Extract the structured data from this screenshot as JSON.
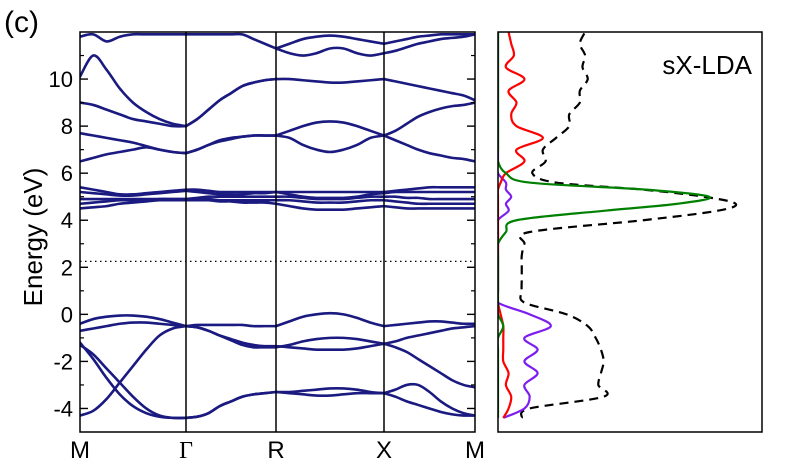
{
  "panel_label": "(c)",
  "chart_data": [
    {
      "type": "line",
      "subtype": "band_structure",
      "ylabel": "Energy (eV)",
      "xlabel": "",
      "ylim": [
        -5,
        12
      ],
      "yticks": [
        -4,
        -2,
        0,
        2,
        4,
        6,
        8,
        10
      ],
      "ytick_labels": [
        "-4",
        "-2",
        "0",
        "2",
        "4",
        "6",
        "8",
        "10"
      ],
      "kpath": [
        {
          "label": "M",
          "x": 0.0
        },
        {
          "label": "Γ",
          "x": 1.0
        },
        {
          "label": "R",
          "x": 1.0
        },
        {
          "label": "X",
          "x": 1.0
        },
        {
          "label": "M",
          "x": 1.0
        }
      ],
      "fermi_level": 2.25,
      "band_color": "#1a1a80",
      "segments": [
        {
          "from": "M",
          "to": "Γ",
          "bands": [
            [
              -4.3,
              -4.1,
              -3.6,
              -2.9,
              -2.2,
              -1.5,
              -0.9,
              -0.6,
              -0.5
            ],
            [
              -1.3,
              -1.7,
              -2.3,
              -2.9,
              -3.5,
              -4.0,
              -4.3,
              -4.4,
              -4.4
            ],
            [
              -1.2,
              -1.9,
              -2.7,
              -3.4,
              -3.9,
              -4.2,
              -4.35,
              -4.4,
              -4.4
            ],
            [
              -0.7,
              -0.6,
              -0.5,
              -0.4,
              -0.35,
              -0.35,
              -0.4,
              -0.45,
              -0.5
            ],
            [
              -0.4,
              -0.2,
              -0.1,
              -0.05,
              -0.05,
              -0.1,
              -0.2,
              -0.35,
              -0.5
            ],
            [
              4.5,
              4.55,
              4.6,
              4.7,
              4.75,
              4.8,
              4.85,
              4.85,
              4.85
            ],
            [
              4.7,
              4.75,
              4.8,
              4.85,
              4.85,
              4.85,
              4.9,
              4.9,
              4.9
            ],
            [
              4.9,
              4.9,
              4.9,
              4.9,
              4.9,
              4.9,
              4.9,
              4.9,
              4.9
            ],
            [
              5.2,
              5.15,
              5.1,
              5.05,
              5.05,
              5.1,
              5.15,
              5.2,
              5.25
            ],
            [
              5.4,
              5.3,
              5.2,
              5.1,
              5.1,
              5.15,
              5.2,
              5.25,
              5.3
            ],
            [
              6.5,
              6.65,
              6.8,
              6.9,
              7.0,
              7.1,
              7.0,
              6.9,
              6.85
            ],
            [
              7.7,
              7.6,
              7.5,
              7.4,
              7.3,
              7.15,
              7.0,
              6.9,
              6.85
            ],
            [
              9.0,
              8.9,
              8.7,
              8.5,
              8.3,
              8.2,
              8.1,
              8.0,
              8.0
            ],
            [
              10.1,
              11.0,
              10.4,
              9.6,
              9.0,
              8.6,
              8.3,
              8.1,
              8.0
            ],
            [
              11.8,
              11.9,
              11.6,
              11.8,
              11.9,
              11.9,
              11.9,
              11.9,
              11.9
            ]
          ]
        },
        {
          "from": "Γ",
          "to": "R",
          "bands": [
            [
              -4.4,
              -4.35,
              -4.2,
              -3.9,
              -3.7,
              -3.5,
              -3.4,
              -3.35,
              -3.3
            ],
            [
              -4.4,
              -4.35,
              -4.2,
              -3.9,
              -3.7,
              -3.5,
              -3.4,
              -3.35,
              -3.3
            ],
            [
              -0.5,
              -0.55,
              -0.7,
              -0.9,
              -1.1,
              -1.3,
              -1.4,
              -1.4,
              -1.4
            ],
            [
              -0.5,
              -0.55,
              -0.7,
              -0.9,
              -1.05,
              -1.2,
              -1.3,
              -1.35,
              -1.35
            ],
            [
              -0.5,
              -0.45,
              -0.45,
              -0.45,
              -0.45,
              -0.45,
              -0.5,
              -0.5,
              -0.5
            ],
            [
              4.85,
              4.85,
              4.85,
              4.8,
              4.8,
              4.75,
              4.75,
              4.75,
              4.7
            ],
            [
              4.9,
              4.9,
              4.9,
              4.85,
              4.85,
              4.85,
              4.85,
              4.85,
              4.85
            ],
            [
              4.9,
              4.95,
              5.0,
              5.0,
              5.0,
              5.0,
              5.0,
              5.0,
              5.0
            ],
            [
              5.25,
              5.2,
              5.15,
              5.1,
              5.1,
              5.1,
              5.15,
              5.15,
              5.2
            ],
            [
              5.3,
              5.3,
              5.25,
              5.2,
              5.2,
              5.2,
              5.2,
              5.2,
              5.2
            ],
            [
              6.85,
              7.0,
              7.2,
              7.4,
              7.5,
              7.55,
              7.6,
              7.6,
              7.6
            ],
            [
              6.85,
              7.0,
              7.2,
              7.35,
              7.45,
              7.55,
              7.6,
              7.6,
              7.6
            ],
            [
              8.0,
              8.3,
              8.7,
              9.1,
              9.4,
              9.7,
              9.85,
              9.95,
              10.0
            ],
            [
              8.0,
              8.3,
              8.7,
              9.1,
              9.4,
              9.7,
              9.85,
              9.95,
              10.0
            ],
            [
              11.9,
              11.9,
              11.9,
              11.9,
              11.9,
              11.9,
              11.7,
              11.5,
              11.3
            ]
          ]
        },
        {
          "from": "R",
          "to": "X",
          "bands": [
            [
              -3.3,
              -3.3,
              -3.25,
              -3.2,
              -3.15,
              -3.15,
              -3.2,
              -3.3,
              -3.35
            ],
            [
              -3.3,
              -3.35,
              -3.4,
              -3.45,
              -3.45,
              -3.4,
              -3.35,
              -3.35,
              -3.35
            ],
            [
              -1.4,
              -1.3,
              -1.15,
              -1.05,
              -1.0,
              -1.0,
              -1.05,
              -1.15,
              -1.25
            ],
            [
              -1.35,
              -1.4,
              -1.45,
              -1.5,
              -1.5,
              -1.5,
              -1.45,
              -1.35,
              -1.25
            ],
            [
              -0.5,
              -0.3,
              -0.1,
              0.0,
              0.05,
              0.0,
              -0.15,
              -0.35,
              -0.5
            ],
            [
              4.7,
              4.6,
              4.5,
              4.45,
              4.45,
              4.45,
              4.5,
              4.55,
              4.6
            ],
            [
              4.85,
              4.85,
              4.8,
              4.75,
              4.75,
              4.75,
              4.8,
              4.85,
              4.85
            ],
            [
              5.0,
              5.0,
              4.95,
              4.9,
              4.9,
              4.9,
              4.95,
              5.0,
              5.0
            ],
            [
              5.2,
              5.1,
              5.0,
              4.95,
              4.95,
              4.95,
              5.0,
              5.1,
              5.15
            ],
            [
              5.2,
              5.2,
              5.2,
              5.2,
              5.2,
              5.2,
              5.2,
              5.2,
              5.2
            ],
            [
              7.6,
              7.5,
              7.2,
              7.0,
              6.9,
              7.0,
              7.2,
              7.5,
              7.6
            ],
            [
              7.6,
              7.8,
              8.0,
              8.15,
              8.2,
              8.15,
              8.0,
              7.8,
              7.6
            ],
            [
              10.0,
              10.0,
              9.95,
              9.9,
              9.85,
              9.85,
              9.9,
              9.95,
              10.0
            ],
            [
              11.3,
              11.1,
              11.0,
              11.1,
              11.3,
              11.3,
              11.1,
              11.0,
              11.1
            ],
            [
              11.3,
              11.5,
              11.7,
              11.8,
              11.85,
              11.8,
              11.7,
              11.6,
              11.5
            ]
          ]
        },
        {
          "from": "X",
          "to": "M",
          "bands": [
            [
              -3.35,
              -3.2,
              -3.0,
              -3.0,
              -3.3,
              -3.7,
              -4.0,
              -4.2,
              -4.3
            ],
            [
              -3.35,
              -3.5,
              -3.7,
              -3.85,
              -4.0,
              -4.15,
              -4.25,
              -4.3,
              -4.3
            ],
            [
              -1.25,
              -1.4,
              -1.6,
              -1.9,
              -2.2,
              -2.5,
              -2.8,
              -3.0,
              -3.1
            ],
            [
              -1.25,
              -1.15,
              -1.0,
              -0.9,
              -0.8,
              -0.7,
              -0.6,
              -0.55,
              -0.5
            ],
            [
              -0.5,
              -0.45,
              -0.4,
              -0.35,
              -0.3,
              -0.3,
              -0.35,
              -0.4,
              -0.4
            ],
            [
              4.6,
              4.55,
              4.5,
              4.5,
              4.5,
              4.5,
              4.5,
              4.5,
              4.5
            ],
            [
              4.85,
              4.8,
              4.75,
              4.7,
              4.7,
              4.7,
              4.7,
              4.7,
              4.7
            ],
            [
              5.0,
              5.0,
              4.95,
              4.95,
              4.9,
              4.9,
              4.9,
              4.9,
              4.9
            ],
            [
              5.15,
              5.2,
              5.2,
              5.2,
              5.2,
              5.2,
              5.2,
              5.2,
              5.2
            ],
            [
              5.2,
              5.25,
              5.3,
              5.35,
              5.4,
              5.4,
              5.4,
              5.4,
              5.4
            ],
            [
              7.6,
              7.4,
              7.2,
              7.0,
              6.85,
              6.75,
              6.65,
              6.6,
              6.5
            ],
            [
              7.6,
              7.8,
              8.1,
              8.4,
              8.6,
              8.75,
              8.85,
              8.9,
              9.0
            ],
            [
              10.0,
              9.9,
              9.8,
              9.7,
              9.6,
              9.5,
              9.4,
              9.3,
              9.1
            ],
            [
              11.1,
              11.2,
              11.35,
              11.5,
              11.6,
              11.7,
              11.75,
              11.8,
              11.9
            ],
            [
              11.5,
              11.6,
              11.7,
              11.8,
              11.85,
              11.9,
              11.9,
              11.9,
              11.9
            ]
          ]
        }
      ]
    },
    {
      "type": "line",
      "subtype": "density_of_states",
      "title": "sX-LDA",
      "ylim": [
        -5,
        12
      ],
      "xlim": [
        0,
        1
      ],
      "energy": [
        -4.4,
        -4.0,
        -3.5,
        -3.0,
        -2.5,
        -2.0,
        -1.5,
        -1.0,
        -0.5,
        0.0,
        0.5,
        1.0,
        1.5,
        2.0,
        2.5,
        3.0,
        3.5,
        4.0,
        4.4,
        4.7,
        5.0,
        5.3,
        5.6,
        6.0,
        6.5,
        7.0,
        7.5,
        8.0,
        8.5,
        9.0,
        9.5,
        10.0,
        10.5,
        11.0,
        11.5,
        12.0
      ],
      "series": [
        {
          "color": "#000000",
          "dash": true,
          "values": [
            0.09,
            0.12,
            0.4,
            0.38,
            0.39,
            0.4,
            0.39,
            0.37,
            0.34,
            0.26,
            0.1,
            0.09,
            0.09,
            0.09,
            0.09,
            0.1,
            0.12,
            0.55,
            0.83,
            0.9,
            0.78,
            0.55,
            0.22,
            0.13,
            0.18,
            0.17,
            0.22,
            0.27,
            0.27,
            0.31,
            0.31,
            0.34,
            0.32,
            0.33,
            0.31,
            0.33
          ]
        },
        {
          "color": "#7d1ef0",
          "values": [
            0.02,
            0.1,
            0.12,
            0.1,
            0.15,
            0.1,
            0.15,
            0.1,
            0.2,
            0.12,
            0.0,
            0.0,
            0.0,
            0.0,
            0.0,
            0.0,
            0.0,
            0.0,
            0.04,
            0.03,
            0.05,
            0.03,
            0.03,
            0.0,
            0.0,
            0.0,
            0.0,
            0.0,
            0.0,
            0.0,
            0.0,
            0.0,
            0.0,
            0.0,
            0.0,
            0.0
          ]
        },
        {
          "color": "#ff0000",
          "values": [
            0.02,
            0.04,
            0.05,
            0.03,
            0.04,
            0.02,
            0.02,
            0.02,
            0.02,
            0.01,
            0.0,
            0.0,
            0.0,
            0.0,
            0.0,
            0.0,
            0.0,
            0.0,
            0.0,
            0.0,
            0.0,
            0.0,
            0.01,
            0.03,
            0.1,
            0.07,
            0.17,
            0.07,
            0.05,
            0.07,
            0.04,
            0.1,
            0.03,
            0.06,
            0.05,
            0.04
          ]
        },
        {
          "color": "#008000",
          "values": [
            0.0,
            0.0,
            0.0,
            0.0,
            0.0,
            0.0,
            0.0,
            0.0,
            0.02,
            0.0,
            0.0,
            0.0,
            0.0,
            0.0,
            0.0,
            0.0,
            0.03,
            0.07,
            0.4,
            0.68,
            0.8,
            0.56,
            0.12,
            0.03,
            0.0,
            0.0,
            0.0,
            0.0,
            0.0,
            0.0,
            0.0,
            0.0,
            0.0,
            0.0,
            0.0,
            0.0
          ]
        }
      ]
    }
  ]
}
